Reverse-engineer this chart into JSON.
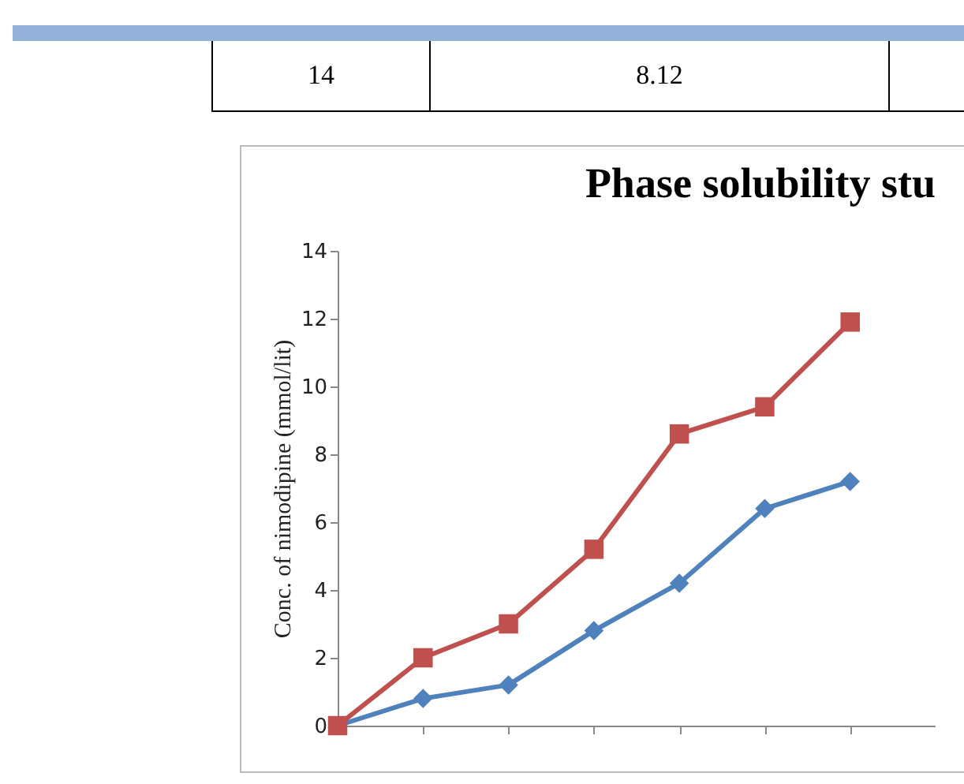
{
  "chart_data": {
    "type": "line",
    "title": "Phase solubility stu",
    "ylabel": "Conc. of nimodipine  (mmol/lit)",
    "annotations": [
      "14",
      "8.12"
    ],
    "categories": [
      null,
      null,
      null,
      null,
      null,
      null,
      null
    ],
    "series": [
      {
        "color": "#4f81bd",
        "marker": "diamond",
        "values": [
          0,
          0.8,
          1.2,
          2.8,
          4.2,
          6.4,
          7.2
        ]
      },
      {
        "color": "#c0504d",
        "marker": "square",
        "values": [
          0,
          2,
          3,
          5.2,
          8.6,
          9.4,
          11.9
        ]
      }
    ],
    "ylim": [
      0,
      14
    ],
    "yticks": [
      0,
      2,
      4,
      6,
      8,
      10,
      12,
      14
    ],
    "grid": false
  }
}
